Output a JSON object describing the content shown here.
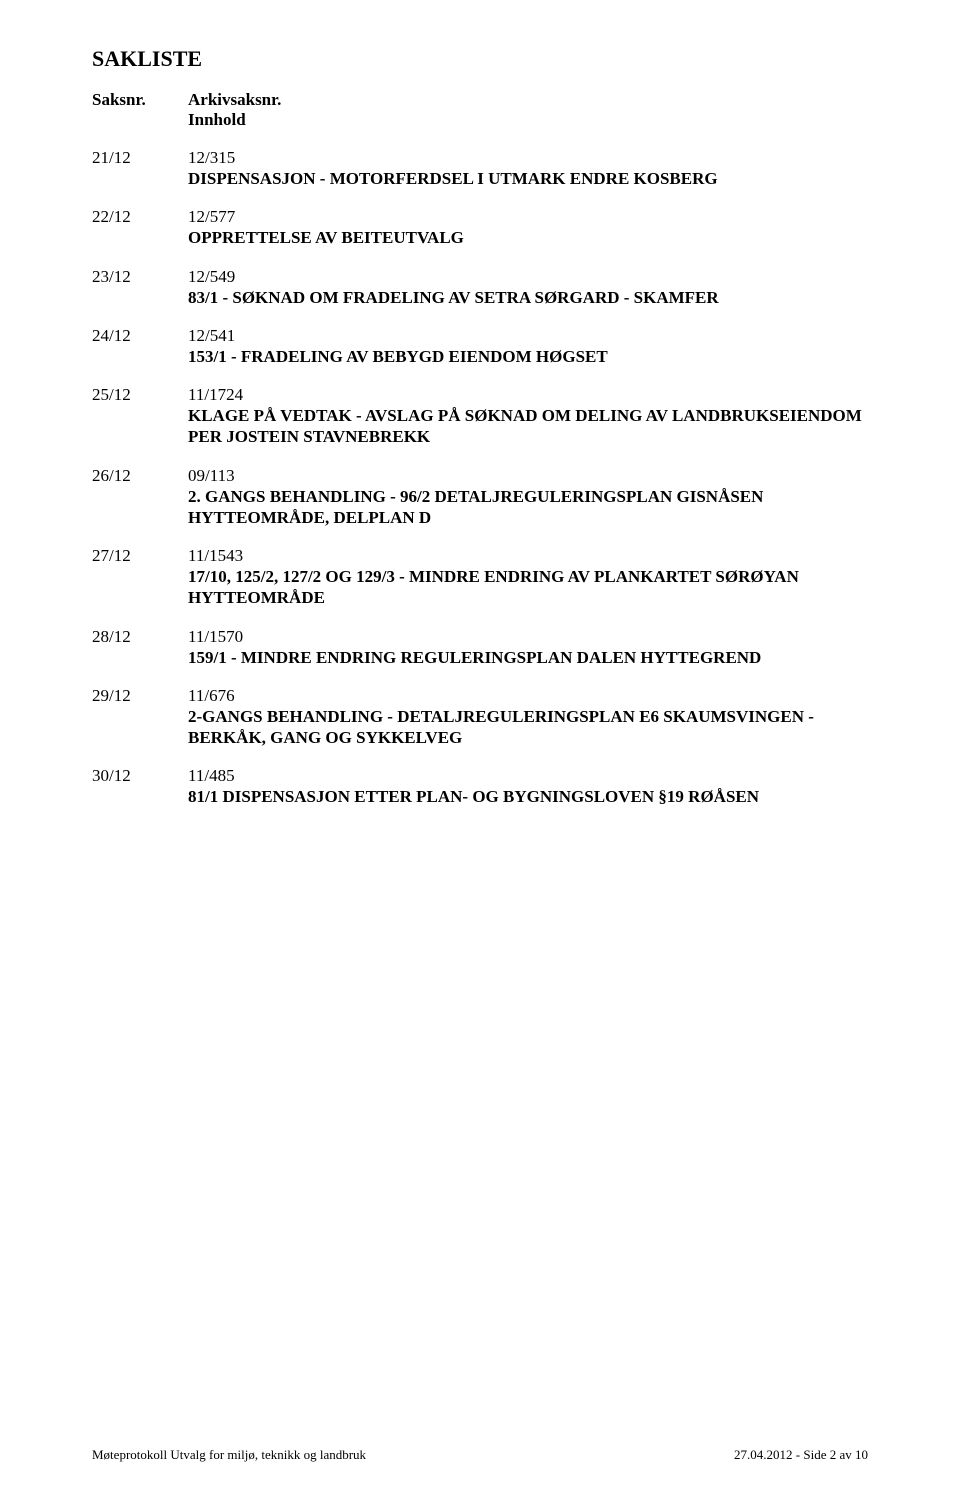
{
  "title": "SAKLISTE",
  "headers": {
    "saksnr": "Saksnr.",
    "arkivsaksnr": "Arkivsaksnr.",
    "innhold": "Innhold"
  },
  "entries": [
    {
      "saksnr": "21/12",
      "arkivsaksnr": "12/315",
      "title": "DISPENSASJON - MOTORFERDSEL I UTMARK ENDRE KOSBERG"
    },
    {
      "saksnr": "22/12",
      "arkivsaksnr": "12/577",
      "title": "OPPRETTELSE AV BEITEUTVALG"
    },
    {
      "saksnr": "23/12",
      "arkivsaksnr": "12/549",
      "title": "83/1 - SØKNAD OM FRADELING AV SETRA SØRGARD - SKAMFER"
    },
    {
      "saksnr": "24/12",
      "arkivsaksnr": "12/541",
      "title": "153/1 - FRADELING AV BEBYGD EIENDOM HØGSET"
    },
    {
      "saksnr": "25/12",
      "arkivsaksnr": "11/1724",
      "title": "KLAGE PÅ VEDTAK - AVSLAG PÅ SØKNAD OM DELING AV LANDBRUKSEIENDOM PER JOSTEIN STAVNEBREKK"
    },
    {
      "saksnr": "26/12",
      "arkivsaksnr": "09/113",
      "title": "2. GANGS BEHANDLING - 96/2 DETALJREGULERINGSPLAN GISNÅSEN HYTTEOMRÅDE, DELPLAN D"
    },
    {
      "saksnr": "27/12",
      "arkivsaksnr": "11/1543",
      "title": "17/10, 125/2, 127/2 OG 129/3 - MINDRE ENDRING AV PLANKARTET SØRØYAN HYTTEOMRÅDE"
    },
    {
      "saksnr": "28/12",
      "arkivsaksnr": "11/1570",
      "title": "159/1 - MINDRE ENDRING REGULERINGSPLAN DALEN HYTTEGREND"
    },
    {
      "saksnr": "29/12",
      "arkivsaksnr": "11/676",
      "title": "2-GANGS BEHANDLING - DETALJREGULERINGSPLAN E6 SKAUMSVINGEN - BERKÅK, GANG OG SYKKELVEG"
    },
    {
      "saksnr": "30/12",
      "arkivsaksnr": "11/485",
      "title": "81/1 DISPENSASJON ETTER PLAN- OG BYGNINGSLOVEN §19 RØÅSEN"
    }
  ],
  "footer": {
    "left": "Møteprotokoll Utvalg for miljø, teknikk og landbruk",
    "right": "27.04.2012 - Side 2 av 10"
  }
}
